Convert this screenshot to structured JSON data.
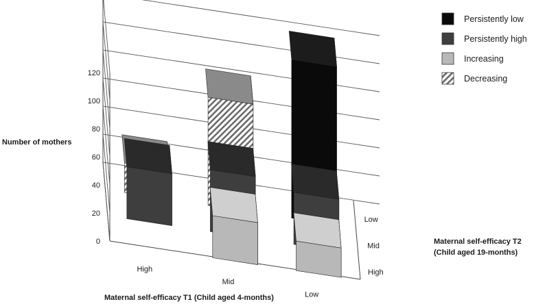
{
  "chart_data": {
    "type": "bar",
    "title": "",
    "ylabel": "Number of mothers",
    "xlabel": "Maternal self-efficacy T1 (Child aged 4-months)",
    "zlabel_line1": "Maternal self-efficacy T2",
    "zlabel_line2": "(Child aged 19-months)",
    "x_categories": [
      "High",
      "Mid",
      "Low"
    ],
    "z_categories": [
      "High",
      "Mid",
      "Low"
    ],
    "ylim": [
      0,
      120
    ],
    "yticks": [
      0,
      20,
      40,
      60,
      80,
      100,
      120
    ],
    "grid": true,
    "legend_position": "top-right",
    "series": [
      {
        "name": "Persistently low",
        "color": "#0a0a0a"
      },
      {
        "name": "Persistently high",
        "color": "#3e3e3e"
      },
      {
        "name": "Increasing",
        "color": "#b8b8b8"
      },
      {
        "name": "Decreasing",
        "color": "#ffffff",
        "pattern": "diagonal-hatch"
      }
    ],
    "bars": [
      {
        "t1": "High",
        "t2": "Mid",
        "series": "Persistently high",
        "value": 37
      },
      {
        "t1": "High",
        "t2": "Low",
        "series": "Decreasing",
        "value": 21
      },
      {
        "t1": "Mid",
        "t2": "High",
        "series": "Increasing",
        "value": 30
      },
      {
        "t1": "Mid",
        "t2": "Mid",
        "series": "Persistently high",
        "value": 44
      },
      {
        "t1": "Mid",
        "t2": "Low",
        "series": "Decreasing",
        "value": 77
      },
      {
        "t1": "Low",
        "t2": "High",
        "series": "Increasing",
        "value": 21
      },
      {
        "t1": "Low",
        "t2": "Mid",
        "series": "Persistently high",
        "value": 37
      },
      {
        "t1": "Low",
        "t2": "Low",
        "series": "Persistently low",
        "value": 113
      }
    ]
  }
}
